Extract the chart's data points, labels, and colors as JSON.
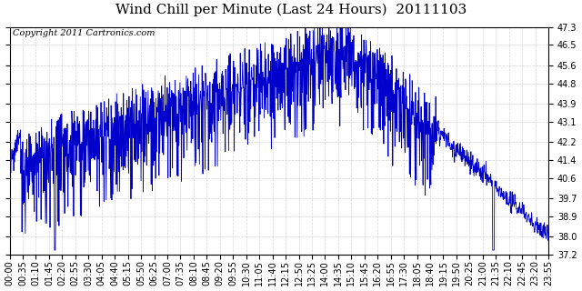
{
  "title": "Wind Chill per Minute (Last 24 Hours)  20111103",
  "copyright_text": "Copyright 2011 Cartronics.com",
  "line_color": "#0000CC",
  "background_color": "#ffffff",
  "plot_bg_color": "#ffffff",
  "grid_color": "#c8c8c8",
  "ylim": [
    37.2,
    47.3
  ],
  "yticks": [
    37.2,
    38.0,
    38.9,
    39.7,
    40.6,
    41.4,
    42.2,
    43.1,
    43.9,
    44.8,
    45.6,
    46.5,
    47.3
  ],
  "xlabel_ticks": [
    "00:00",
    "00:35",
    "01:10",
    "01:45",
    "02:20",
    "02:55",
    "03:30",
    "04:05",
    "04:40",
    "05:15",
    "05:50",
    "06:25",
    "07:00",
    "07:35",
    "08:10",
    "08:45",
    "09:20",
    "09:55",
    "10:30",
    "11:05",
    "11:40",
    "12:15",
    "12:50",
    "13:25",
    "14:00",
    "14:35",
    "15:10",
    "15:45",
    "16:20",
    "16:55",
    "17:30",
    "18:05",
    "18:40",
    "19:15",
    "19:50",
    "20:25",
    "21:00",
    "21:35",
    "22:10",
    "22:45",
    "23:20",
    "23:55"
  ],
  "title_fontsize": 11,
  "tick_fontsize": 7,
  "copyright_fontsize": 7
}
